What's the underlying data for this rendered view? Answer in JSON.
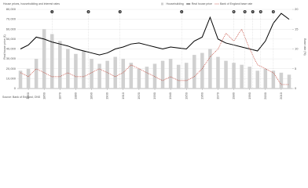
{
  "chart_data": {
    "type": "combo",
    "title": "House prices, housebuilding and interest rates",
    "source": "Source: Bank of England, ONS",
    "ylabel": "Real house price (£)",
    "y2label": "Base rate (%)",
    "xlim": [
      1843,
      2017
    ],
    "xticks": [
      1850,
      1860,
      1870,
      1880,
      1890,
      1900,
      1910,
      1920,
      1930,
      1940,
      1950,
      1960,
      1970,
      1980,
      1990,
      2000,
      2010
    ],
    "ylim": [
      0,
      80000
    ],
    "yticks": [
      {
        "value": 0,
        "label": "0"
      },
      {
        "value": 10000,
        "label": "10,000"
      },
      {
        "value": 20000,
        "label": "20,000"
      },
      {
        "value": 30000,
        "label": "30,000"
      },
      {
        "value": 40000,
        "label": "40,000"
      },
      {
        "value": 50000,
        "label": "50,000"
      },
      {
        "value": 60000,
        "label": "60,000"
      },
      {
        "value": 70000,
        "label": "70,000"
      },
      {
        "value": 80000,
        "label": "80,000"
      }
    ],
    "y2lim": [
      0,
      20
    ],
    "y2ticks": [
      0,
      5,
      10,
      15,
      20
    ],
    "grid": true,
    "x": [
      1845,
      1850,
      1855,
      1860,
      1865,
      1870,
      1875,
      1880,
      1885,
      1890,
      1895,
      1900,
      1905,
      1910,
      1915,
      1920,
      1925,
      1930,
      1935,
      1940,
      1945,
      1950,
      1955,
      1960,
      1965,
      1970,
      1975,
      1980,
      1985,
      1990,
      1995,
      2000,
      2005,
      2010,
      2015
    ],
    "series": [
      {
        "name": "Housebuilding",
        "kind": "bar",
        "color": "#d0d0d0",
        "values": [
          18000,
          20000,
          30000,
          60000,
          55000,
          48000,
          40000,
          35000,
          38000,
          30000,
          25000,
          28000,
          32000,
          30000,
          26000,
          20000,
          22000,
          25000,
          28000,
          30000,
          24000,
          26000,
          34000,
          36000,
          40000,
          32000,
          28000,
          26000,
          24000,
          22000,
          18000,
          20000,
          18000,
          16000,
          14000
        ]
      },
      {
        "name": "Real house price",
        "kind": "line",
        "color": "#000000",
        "values": [
          40000,
          44000,
          52000,
          50000,
          47000,
          45000,
          43000,
          40000,
          38000,
          36000,
          34000,
          36000,
          40000,
          42000,
          45000,
          46000,
          44000,
          42000,
          40000,
          42000,
          41000,
          40000,
          48000,
          52000,
          72000,
          50000,
          46000,
          44000,
          42000,
          40000,
          38000,
          48000,
          66000,
          76000,
          70000
        ]
      },
      {
        "name": "Bank of England base rate",
        "kind": "dotted",
        "color": "#c0392b",
        "axis": "y2",
        "values": [
          4,
          3,
          5,
          4,
          3,
          3,
          4,
          3,
          3,
          4,
          5,
          4,
          3,
          4,
          6,
          5,
          4,
          3,
          2,
          3,
          2,
          2,
          3,
          5,
          8,
          10,
          14,
          12,
          15,
          10,
          6,
          5,
          4,
          1,
          1
        ]
      }
    ],
    "annotations": [
      {
        "x": 1865,
        "label": "1"
      },
      {
        "x": 1888,
        "label": "2"
      },
      {
        "x": 1908,
        "label": "3"
      },
      {
        "x": 1947,
        "label": "4"
      },
      {
        "x": 1980,
        "label": "5"
      },
      {
        "x": 1987,
        "label": "6"
      },
      {
        "x": 1992,
        "label": "7"
      },
      {
        "x": 1997,
        "label": "8"
      },
      {
        "x": 2005,
        "label": "9"
      }
    ]
  }
}
